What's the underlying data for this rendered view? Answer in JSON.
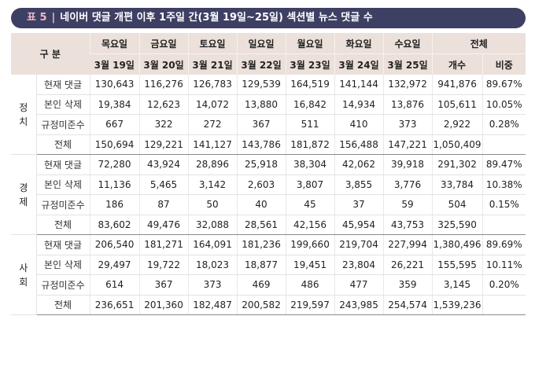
{
  "title": {
    "num": "표 5",
    "sep": "|",
    "text": "네이버 댓글 개편 이후 1주일 간(3월 19일~25일) 섹션별 뉴스 댓글 수"
  },
  "header": {
    "gubun": "구 분",
    "days": [
      "목요일",
      "금요일",
      "토요일",
      "일요일",
      "월요일",
      "화요일",
      "수요일"
    ],
    "dates": [
      "3월 19일",
      "3월 20일",
      "3월 21일",
      "3월 22일",
      "3월 23일",
      "3월 24일",
      "3월 25일"
    ],
    "total": "전체",
    "count": "개수",
    "ratio": "비중"
  },
  "groups": [
    {
      "name": [
        "정",
        "치"
      ],
      "rows": [
        {
          "label": "현재 댓글",
          "values": [
            "130,643",
            "116,276",
            "126,783",
            "129,539",
            "164,519",
            "141,144",
            "132,972"
          ],
          "count": "941,876",
          "ratio": "89.67%"
        },
        {
          "label": "본인 삭제",
          "values": [
            "19,384",
            "12,623",
            "14,072",
            "13,880",
            "16,842",
            "14,934",
            "13,876"
          ],
          "count": "105,611",
          "ratio": "10.05%"
        },
        {
          "label": "규정미준수",
          "values": [
            "667",
            "322",
            "272",
            "367",
            "511",
            "410",
            "373"
          ],
          "count": "2,922",
          "ratio": "0.28%"
        },
        {
          "label": "전체",
          "values": [
            "150,694",
            "129,221",
            "141,127",
            "143,786",
            "181,872",
            "156,488",
            "147,221"
          ],
          "count": "1,050,409",
          "ratio": ""
        }
      ]
    },
    {
      "name": [
        "경",
        "제"
      ],
      "rows": [
        {
          "label": "현재 댓글",
          "values": [
            "72,280",
            "43,924",
            "28,896",
            "25,918",
            "38,304",
            "42,062",
            "39,918"
          ],
          "count": "291,302",
          "ratio": "89.47%"
        },
        {
          "label": "본인 삭제",
          "values": [
            "11,136",
            "5,465",
            "3,142",
            "2,603",
            "3,807",
            "3,855",
            "3,776"
          ],
          "count": "33,784",
          "ratio": "10.38%"
        },
        {
          "label": "규정미준수",
          "values": [
            "186",
            "87",
            "50",
            "40",
            "45",
            "37",
            "59"
          ],
          "count": "504",
          "ratio": "0.15%"
        },
        {
          "label": "전체",
          "values": [
            "83,602",
            "49,476",
            "32,088",
            "28,561",
            "42,156",
            "45,954",
            "43,753"
          ],
          "count": "325,590",
          "ratio": ""
        }
      ]
    },
    {
      "name": [
        "사",
        "회"
      ],
      "rows": [
        {
          "label": "현재 댓글",
          "values": [
            "206,540",
            "181,271",
            "164,091",
            "181,236",
            "199,660",
            "219,704",
            "227,994"
          ],
          "count": "1,380,496",
          "ratio": "89.69%"
        },
        {
          "label": "본인 삭제",
          "values": [
            "29,497",
            "19,722",
            "18,023",
            "18,877",
            "19,451",
            "23,804",
            "26,221"
          ],
          "count": "155,595",
          "ratio": "10.11%"
        },
        {
          "label": "규정미준수",
          "values": [
            "614",
            "367",
            "373",
            "469",
            "486",
            "477",
            "359"
          ],
          "count": "3,145",
          "ratio": "0.20%"
        },
        {
          "label": "전체",
          "values": [
            "236,651",
            "201,360",
            "182,487",
            "200,582",
            "219,597",
            "243,985",
            "254,574"
          ],
          "count": "1,539,236",
          "ratio": ""
        }
      ]
    }
  ]
}
